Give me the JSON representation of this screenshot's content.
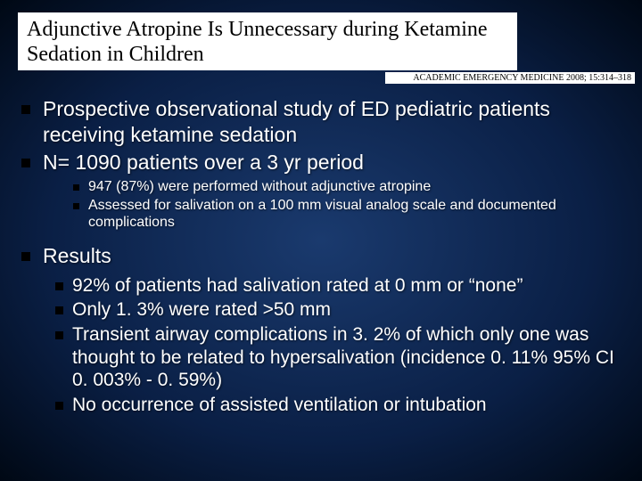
{
  "title": "Adjunctive Atropine Is Unnecessary during Ketamine Sedation in Children",
  "citation": "ACADEMIC EMERGENCY MEDICINE 2008; 15:314–318",
  "bullets": {
    "b1": "Prospective observational study of ED pediatric patients receiving ketamine sedation",
    "b2": "N= 1090 patients over a 3 yr period",
    "b2_sub": {
      "s1": "947 (87%) were performed without adjunctive atropine",
      "s2": "Assessed for salivation on a 100 mm visual analog scale and documented complications"
    },
    "b3": "Results",
    "b3_sub": {
      "s1": "92% of patients had salivation rated at 0 mm or “none”",
      "s2": "Only 1. 3% were rated >50 mm",
      "s3": "Transient airway complications in 3. 2% of which only one was thought to be related to hypersalivation (incidence 0. 11% 95% CI 0. 003% - 0. 59%)",
      "s4": "No occurrence of assisted ventilation or intubation"
    }
  },
  "colors": {
    "bg_center": "#1a3a6e",
    "bg_mid": "#0a1f45",
    "bg_edge": "#000814",
    "text": "#ffffff",
    "title_bg": "#ffffff",
    "title_text": "#000000",
    "bullet_color": "#000000"
  },
  "fonts": {
    "title_family": "Georgia serif",
    "title_size": 24,
    "citation_size": 10,
    "body_family": "Arial",
    "lvl1_size": 23,
    "lvl2_size": 16,
    "lvl2b_size": 21
  }
}
